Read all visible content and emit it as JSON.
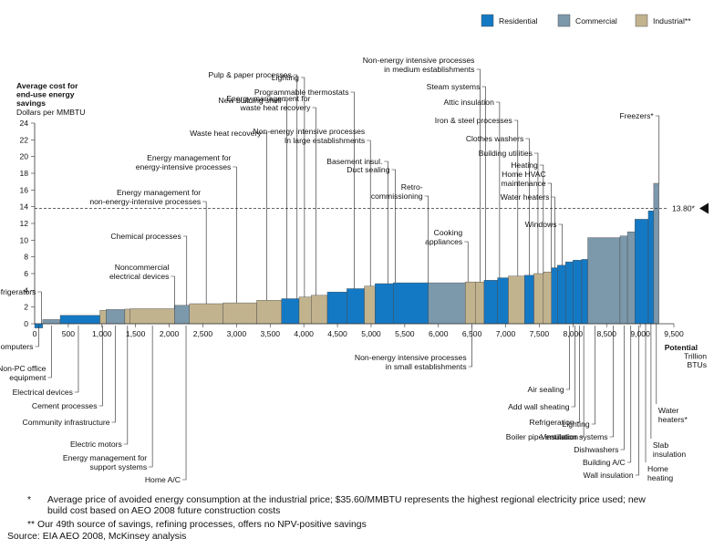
{
  "legend": [
    {
      "name": "Residential",
      "color": "#1479c4"
    },
    {
      "name": "Commercial",
      "color": "#7c98ab"
    },
    {
      "name": "Industrial**",
      "color": "#c2b38f"
    }
  ],
  "chart_data": {
    "type": "bar",
    "variant": "cost-curve",
    "ytitle": [
      "Average cost for",
      "end-use energy",
      "savings"
    ],
    "yunit": "Dollars per MMBTU",
    "xtitle": [
      "Potential",
      "Trillion",
      "BTUs"
    ],
    "ylim": [
      0,
      24
    ],
    "xlim": [
      0,
      9500
    ],
    "yticks": [
      0,
      2,
      4,
      6,
      8,
      10,
      12,
      14,
      16,
      18,
      20,
      22,
      24
    ],
    "xticks": [
      "500",
      "1,000",
      "1,500",
      "2,000",
      "2,500",
      "3,000",
      "3,500",
      "4,000",
      "4,500",
      "5,000",
      "5,500",
      "6,000",
      "6,500",
      "7,000",
      "7,500",
      "8,000",
      "8,500",
      "9,000",
      "9,500"
    ],
    "xtick_values": [
      500,
      1000,
      1500,
      2000,
      2500,
      3000,
      3500,
      4000,
      4500,
      5000,
      5500,
      6000,
      6500,
      7000,
      7500,
      8000,
      8500,
      9000,
      9500
    ],
    "threshold": {
      "value": 13.8,
      "label": "13.80*"
    },
    "bars": [
      {
        "x0": 0,
        "x1": 120,
        "y": -0.5,
        "sector": "Residential"
      },
      {
        "x0": 120,
        "x1": 380,
        "y": 0.5,
        "sector": "Commercial"
      },
      {
        "x0": 380,
        "x1": 970,
        "y": 1.0,
        "sector": "Residential"
      },
      {
        "x0": 970,
        "x1": 1060,
        "y": 1.6,
        "sector": "Industrial"
      },
      {
        "x0": 1060,
        "x1": 1340,
        "y": 1.7,
        "sector": "Commercial"
      },
      {
        "x0": 1340,
        "x1": 1420,
        "y": 1.75,
        "sector": "Industrial"
      },
      {
        "x0": 1420,
        "x1": 2080,
        "y": 1.8,
        "sector": "Industrial"
      },
      {
        "x0": 2080,
        "x1": 2300,
        "y": 2.2,
        "sector": "Commercial"
      },
      {
        "x0": 2300,
        "x1": 2800,
        "y": 2.4,
        "sector": "Industrial"
      },
      {
        "x0": 2800,
        "x1": 3300,
        "y": 2.5,
        "sector": "Industrial"
      },
      {
        "x0": 3300,
        "x1": 3670,
        "y": 2.8,
        "sector": "Industrial"
      },
      {
        "x0": 3670,
        "x1": 3930,
        "y": 3.0,
        "sector": "Residential"
      },
      {
        "x0": 3930,
        "x1": 4110,
        "y": 3.2,
        "sector": "Industrial"
      },
      {
        "x0": 4110,
        "x1": 4350,
        "y": 3.4,
        "sector": "Industrial"
      },
      {
        "x0": 4350,
        "x1": 4640,
        "y": 3.8,
        "sector": "Residential"
      },
      {
        "x0": 4640,
        "x1": 4900,
        "y": 4.2,
        "sector": "Residential"
      },
      {
        "x0": 4900,
        "x1": 5060,
        "y": 4.5,
        "sector": "Industrial"
      },
      {
        "x0": 5060,
        "x1": 5330,
        "y": 4.8,
        "sector": "Residential"
      },
      {
        "x0": 5330,
        "x1": 5850,
        "y": 4.9,
        "sector": "Residential"
      },
      {
        "x0": 5850,
        "x1": 6400,
        "y": 4.9,
        "sector": "Commercial"
      },
      {
        "x0": 6400,
        "x1": 6550,
        "y": 5.0,
        "sector": "Industrial"
      },
      {
        "x0": 6550,
        "x1": 6680,
        "y": 5.0,
        "sector": "Industrial"
      },
      {
        "x0": 6680,
        "x1": 6880,
        "y": 5.2,
        "sector": "Residential"
      },
      {
        "x0": 6880,
        "x1": 7040,
        "y": 5.5,
        "sector": "Residential"
      },
      {
        "x0": 7040,
        "x1": 7280,
        "y": 5.7,
        "sector": "Industrial"
      },
      {
        "x0": 7280,
        "x1": 7420,
        "y": 5.8,
        "sector": "Residential"
      },
      {
        "x0": 7420,
        "x1": 7560,
        "y": 6.0,
        "sector": "Industrial"
      },
      {
        "x0": 7560,
        "x1": 7680,
        "y": 6.2,
        "sector": "Industrial"
      },
      {
        "x0": 7680,
        "x1": 7770,
        "y": 6.7,
        "sector": "Residential"
      },
      {
        "x0": 7770,
        "x1": 7890,
        "y": 7.0,
        "sector": "Residential"
      },
      {
        "x0": 7890,
        "x1": 8000,
        "y": 7.4,
        "sector": "Residential"
      },
      {
        "x0": 8000,
        "x1": 8130,
        "y": 7.6,
        "sector": "Residential"
      },
      {
        "x0": 8130,
        "x1": 8220,
        "y": 7.7,
        "sector": "Residential"
      },
      {
        "x0": 8220,
        "x1": 8700,
        "y": 10.3,
        "sector": "Commercial"
      },
      {
        "x0": 8700,
        "x1": 8810,
        "y": 10.5,
        "sector": "Commercial"
      },
      {
        "x0": 8810,
        "x1": 8920,
        "y": 11.0,
        "sector": "Commercial"
      },
      {
        "x0": 8920,
        "x1": 9120,
        "y": 12.5,
        "sector": "Residential"
      },
      {
        "x0": 9120,
        "x1": 9200,
        "y": 13.5,
        "sector": "Residential"
      },
      {
        "x0": 9200,
        "x1": 9280,
        "y": 16.8,
        "sector": "Commercial"
      }
    ],
    "labels_above": [
      {
        "text": [
          "Refrigerators"
        ],
        "x": 100
      },
      {
        "text": [
          "Noncommercial",
          "electrical devices"
        ],
        "x": 2080
      },
      {
        "text": [
          "Chemical processes"
        ],
        "x": 2260
      },
      {
        "text": [
          "Energy management for",
          "non-energy-intensive processes"
        ],
        "x": 2550
      },
      {
        "text": [
          "Energy management for",
          "energy-intensive processes"
        ],
        "x": 3000
      },
      {
        "text": [
          "Waste heat recovery"
        ],
        "x": 3450
      },
      {
        "text": [
          "New building shell"
        ],
        "x": 3750
      },
      {
        "text": [
          "Pulp & paper processes"
        ],
        "x": 3900
      },
      {
        "text": [
          "Energy management for",
          "waste heat recovery"
        ],
        "x": 4180
      },
      {
        "text": [
          "Lighting"
        ],
        "x": 4010
      },
      {
        "text": [
          "Programmable thermostats"
        ],
        "x": 4750
      },
      {
        "text": [
          "Non-energy intensive processes",
          "In large establishments"
        ],
        "x": 4990
      },
      {
        "text": [
          "Basement insul."
        ],
        "x": 5250
      },
      {
        "text": [
          "Duct sealing"
        ],
        "x": 5360
      },
      {
        "text": [
          "Retro-",
          "commissioning"
        ],
        "x": 5850
      },
      {
        "text": [
          "Cooking",
          "appliances"
        ],
        "x": 6440
      },
      {
        "text": [
          "Non-energy intensive processes",
          "in medium establishments"
        ],
        "x": 6620
      },
      {
        "text": [
          "Steam systems"
        ],
        "x": 6700
      },
      {
        "text": [
          "Attic insulation"
        ],
        "x": 6910
      },
      {
        "text": [
          "Iron & steel processes"
        ],
        "x": 7180
      },
      {
        "text": [
          "Clothes washers"
        ],
        "x": 7350
      },
      {
        "text": [
          "Building utilities"
        ],
        "x": 7480
      },
      {
        "text": [
          "Heating"
        ],
        "x": 7560
      },
      {
        "text": [
          "Home HVAC",
          "maintenance"
        ],
        "x": 7680
      },
      {
        "text": [
          "Water heaters"
        ],
        "x": 7730
      },
      {
        "text": [
          "Windows"
        ],
        "x": 7840
      },
      {
        "text": [
          "Freezers*"
        ],
        "x": 9280
      }
    ],
    "labels_below": [
      {
        "text": [
          "Computers"
        ],
        "x": 60
      },
      {
        "text": [
          "Non-PC office",
          "equipment"
        ],
        "x": 250
      },
      {
        "text": [
          "Electrical devices"
        ],
        "x": 650
      },
      {
        "text": [
          "Cement processes"
        ],
        "x": 1010
      },
      {
        "text": [
          "Community infrastructure"
        ],
        "x": 1200
      },
      {
        "text": [
          "Electric motors"
        ],
        "x": 1380
      },
      {
        "text": [
          "Energy management for",
          "support systems"
        ],
        "x": 1750
      },
      {
        "text": [
          "Home A/C"
        ],
        "x": 2250
      },
      {
        "text": [
          "Non-energy intensive processes",
          "in small establishments"
        ],
        "x": 6500
      },
      {
        "text": [
          "Air sealing"
        ],
        "x": 7950
      },
      {
        "text": [
          "Add wall sheating"
        ],
        "x": 8030
      },
      {
        "text": [
          "Refrigeration"
        ],
        "x": 8100
      },
      {
        "text": [
          "Boiler pipe insulation"
        ],
        "x": 8160
      },
      {
        "text": [
          "Lighting"
        ],
        "x": 8330
      },
      {
        "text": [
          "Ventilation systems"
        ],
        "x": 8600
      },
      {
        "text": [
          "Dishwashers"
        ],
        "x": 8760
      },
      {
        "text": [
          "Building A/C"
        ],
        "x": 8860
      },
      {
        "text": [
          "Wall insulation"
        ],
        "x": 8980
      },
      {
        "text": [
          "Home",
          "heating"
        ],
        "x": 9080
      },
      {
        "text": [
          "Slab",
          "insulation"
        ],
        "x": 9160
      },
      {
        "text": [
          "Water",
          "heaters*"
        ],
        "x": 9240
      }
    ]
  },
  "footnotes": {
    "note1_mark": "*",
    "note1_line1": "Average price of avoided energy consumption at the industrial price; $35.60/MMBTU represents the highest regional electricity price used; new",
    "note1_line2": "build cost based on AEO 2008 future construction costs",
    "note2_mark": "**",
    "note2_text": "Our 49th source of savings, refining processes, offers no NPV-positive savings",
    "source": "Source: EIA AEO 2008, McKinsey analysis"
  }
}
